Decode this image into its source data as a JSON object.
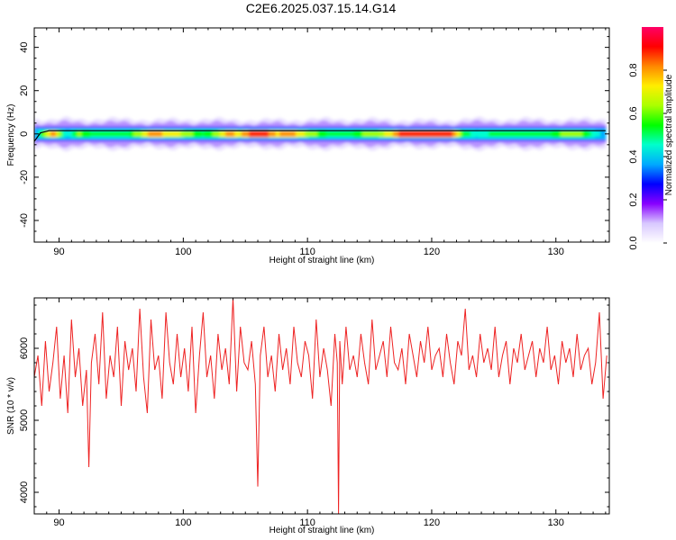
{
  "title": "C2E6.2025.037.15.14.G14",
  "chart_data": [
    {
      "type": "heatmap",
      "xlabel": "Height of straight line (km)",
      "ylabel": "Frequency (Hz)",
      "xlim": [
        88.0,
        134.3
      ],
      "ylim": [
        -50,
        49
      ],
      "xticks": [
        90,
        100,
        110,
        120,
        130
      ],
      "yticks": [
        -40,
        -20,
        0,
        20,
        40
      ],
      "colorbar": {
        "label": "Normalized spectral amplitude",
        "range": [
          0.0,
          1.0
        ],
        "ticks": [
          0.0,
          0.2,
          0.4,
          0.6,
          0.8
        ],
        "colormap": [
          "#ffffff",
          "#d8c8ff",
          "#8800ff",
          "#0000ff",
          "#00aaff",
          "#00ffcc",
          "#00ff00",
          "#aaff00",
          "#ffee00",
          "#ff8800",
          "#ff0000",
          "#ff0066"
        ]
      },
      "intensity_profile": {
        "x": [
          88.0,
          88.5,
          89.5,
          90.5,
          91.5,
          92.5,
          93.5,
          94.5,
          95.5,
          96.5,
          97.5,
          98.5,
          99.5,
          100.5,
          101.5,
          102.5,
          103.5,
          104.5,
          105.5,
          106.5,
          107.5,
          108.5,
          109.5,
          110.5,
          111.5,
          112.5,
          113.5,
          114.5,
          115.5,
          116.5,
          117.5,
          118.5,
          119.5,
          120.5,
          121.5,
          122.5,
          123.5,
          124.5,
          125.5,
          126.5,
          127.5,
          128.5,
          129.5,
          130.5,
          131.5,
          132.5,
          133.5
        ],
        "amplitude": [
          0.35,
          0.55,
          0.85,
          0.4,
          0.6,
          0.55,
          0.5,
          0.5,
          0.55,
          0.65,
          0.85,
          0.75,
          0.7,
          0.6,
          0.55,
          0.6,
          0.8,
          0.75,
          0.9,
          0.9,
          0.75,
          0.85,
          0.7,
          0.6,
          0.55,
          0.55,
          0.55,
          0.6,
          0.65,
          0.7,
          0.9,
          0.95,
          0.95,
          0.95,
          0.9,
          0.55,
          0.45,
          0.5,
          0.5,
          0.55,
          0.55,
          0.5,
          0.55,
          0.6,
          0.65,
          0.55,
          0.4
        ],
        "center_freq": 0,
        "ridge_line": [
          [
            88.0,
            -3.5
          ],
          [
            88.5,
            0.5
          ],
          [
            89.2,
            1.5
          ],
          [
            134.0,
            1.5
          ]
        ]
      }
    },
    {
      "type": "line",
      "xlabel": "Height of straight line (km)",
      "ylabel": "SNR (10 * v/v)",
      "xlim": [
        88.0,
        134.3
      ],
      "ylim": [
        3700,
        6700
      ],
      "xticks": [
        90,
        100,
        110,
        120,
        130
      ],
      "yticks": [
        4000,
        5000,
        6000
      ],
      "color": "#ee2222",
      "series": [
        {
          "x": [
            88.0,
            88.3,
            88.6,
            88.9,
            89.2,
            89.5,
            89.8,
            90.1,
            90.4,
            90.7,
            91.0,
            91.3,
            91.6,
            91.9,
            92.2,
            92.4,
            92.6,
            92.9,
            93.2,
            93.5,
            93.8,
            94.1,
            94.4,
            94.7,
            95.0,
            95.3,
            95.6,
            95.9,
            96.2,
            96.5,
            96.8,
            97.1,
            97.4,
            97.7,
            98.0,
            98.3,
            98.6,
            98.9,
            99.2,
            99.5,
            99.8,
            100.1,
            100.4,
            100.7,
            101.0,
            101.3,
            101.6,
            101.9,
            102.2,
            102.5,
            102.8,
            103.1,
            103.4,
            103.7,
            104.0,
            104.3,
            104.6,
            104.9,
            105.2,
            105.5,
            105.8,
            106.0,
            106.2,
            106.5,
            106.8,
            107.1,
            107.4,
            107.7,
            108.0,
            108.3,
            108.6,
            108.9,
            109.2,
            109.5,
            109.8,
            110.1,
            110.4,
            110.7,
            111.0,
            111.3,
            111.6,
            111.9,
            112.2,
            112.4,
            112.5,
            112.6,
            112.8,
            113.1,
            113.4,
            113.7,
            114.0,
            114.3,
            114.6,
            114.9,
            115.2,
            115.5,
            115.8,
            116.1,
            116.4,
            116.7,
            117.0,
            117.3,
            117.6,
            117.9,
            118.2,
            118.5,
            118.8,
            119.1,
            119.4,
            119.7,
            120.0,
            120.3,
            120.6,
            120.9,
            121.2,
            121.5,
            121.8,
            122.1,
            122.4,
            122.7,
            123.0,
            123.3,
            123.6,
            123.9,
            124.2,
            124.5,
            124.8,
            125.1,
            125.4,
            125.7,
            126.0,
            126.3,
            126.6,
            126.9,
            127.2,
            127.5,
            127.8,
            128.1,
            128.4,
            128.7,
            129.0,
            129.3,
            129.6,
            129.9,
            130.2,
            130.5,
            130.8,
            131.1,
            131.4,
            131.7,
            132.0,
            132.3,
            132.6,
            132.9,
            133.2,
            133.5,
            133.8,
            134.1
          ],
          "y": [
            5600,
            5900,
            5200,
            6100,
            5400,
            5800,
            6300,
            5300,
            5900,
            5100,
            6400,
            5600,
            6000,
            5200,
            5700,
            4350,
            5800,
            6200,
            5500,
            6500,
            5300,
            5900,
            5600,
            6300,
            5200,
            6100,
            5700,
            6000,
            5400,
            6550,
            5600,
            5100,
            6400,
            5700,
            5900,
            5300,
            6500,
            5800,
            5500,
            6200,
            5600,
            6000,
            5400,
            6300,
            5100,
            5900,
            6500,
            5600,
            5900,
            5300,
            6200,
            5700,
            6000,
            5500,
            6700,
            5400,
            6300,
            5800,
            5700,
            6100,
            5500,
            4080,
            5900,
            6300,
            5600,
            5900,
            5400,
            6200,
            5700,
            6000,
            5500,
            6300,
            5800,
            5600,
            6100,
            5900,
            5300,
            6400,
            5600,
            6000,
            5700,
            5200,
            6200,
            5800,
            3700,
            6100,
            5500,
            6300,
            5700,
            5900,
            5600,
            6200,
            5800,
            5500,
            6400,
            5700,
            5900,
            6100,
            5600,
            6300,
            5800,
            5700,
            6000,
            5500,
            6200,
            5900,
            5600,
            6100,
            5800,
            6300,
            5700,
            5900,
            6000,
            5600,
            6200,
            5800,
            5500,
            6100,
            5900,
            6550,
            5700,
            5900,
            5600,
            6200,
            5800,
            6000,
            5700,
            6300,
            5600,
            5900,
            6100,
            5500,
            6000,
            5800,
            6200,
            5700,
            5900,
            6100,
            5600,
            6000,
            5800,
            6300,
            5700,
            5900,
            5500,
            6100,
            5800,
            6000,
            5600,
            6200,
            5700,
            5900,
            6000,
            5500,
            5800,
            6500,
            5300,
            5900
          ]
        }
      ]
    }
  ]
}
